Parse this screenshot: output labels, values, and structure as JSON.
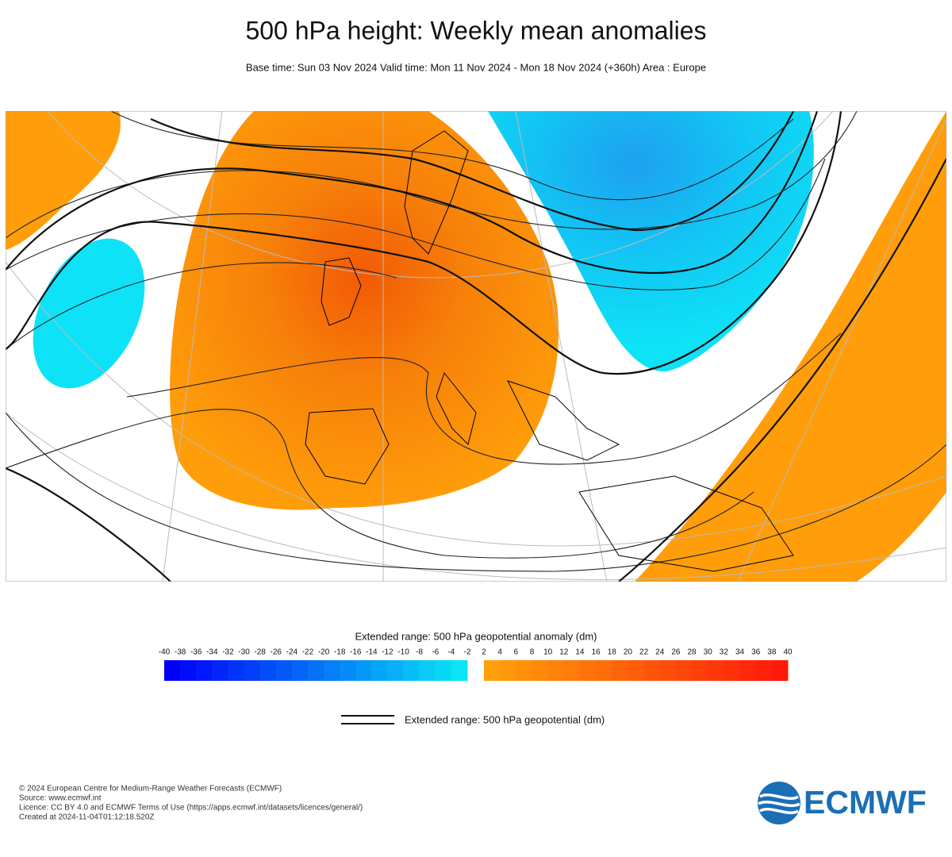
{
  "header": {
    "title": "500 hPa height: Weekly mean anomalies",
    "subtitle": "Base time: Sun 03 Nov 2024 Valid time: Mon 11 Nov 2024 - Mon 18 Nov 2024 (+360h) Area : Europe"
  },
  "colorbar": {
    "title": "Extended range: 500 hPa geopotential anomaly (dm)",
    "negative_ticks": [
      -40,
      -38,
      -36,
      -34,
      -32,
      -30,
      -28,
      -26,
      -24,
      -22,
      -20,
      -18,
      -16,
      -14,
      -12,
      -10,
      -8,
      -6,
      -4,
      -2
    ],
    "positive_ticks": [
      2,
      4,
      6,
      8,
      10,
      12,
      14,
      16,
      18,
      20,
      22,
      24,
      26,
      28,
      30,
      32,
      34,
      36,
      38,
      40
    ]
  },
  "legend": {
    "label": "Extended range: 500 hPa geopotential (dm)"
  },
  "footer": {
    "lines": [
      "© 2024 European Centre for Medium-Range Weather Forecasts (ECMWF)",
      "Source: www.ecmwf.int",
      "Licence: CC BY 4.0 and ECMWF Terms of Use (https://apps.ecmwf.int/datasets/licences/general/)",
      "Created at 2024-11-04T01:12:18.520Z"
    ],
    "logo": "ECMWF"
  }
}
